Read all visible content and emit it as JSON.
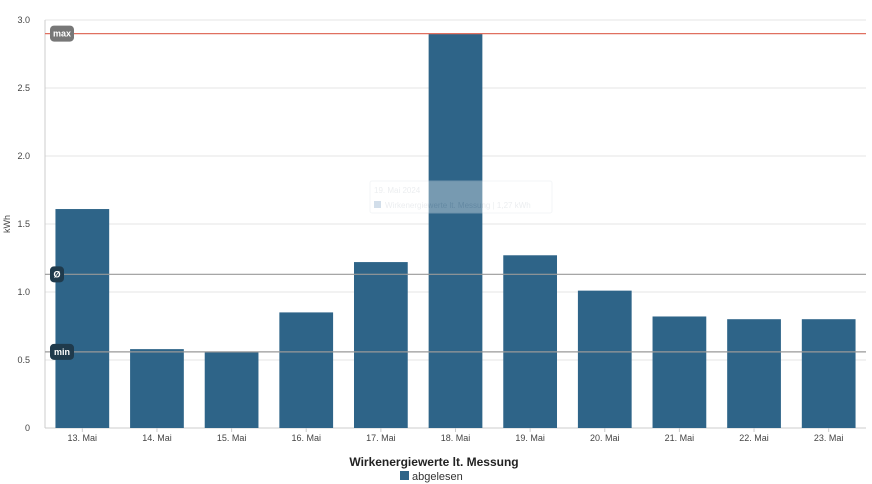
{
  "chart_data": {
    "type": "bar",
    "ylabel": "kWh",
    "ylim": [
      0,
      3.0
    ],
    "yticks": [
      "0",
      "0.5",
      "1.0",
      "1.5",
      "2.0",
      "2.5",
      "3.0"
    ],
    "categories": [
      "13. Mai",
      "14. Mai",
      "15. Mai",
      "16. Mai",
      "17. Mai",
      "18. Mai",
      "19. Mai",
      "20. Mai",
      "21. Mai",
      "22. Mai",
      "23. Mai"
    ],
    "series": [
      {
        "name": "abgelesen",
        "color": "#2e6488",
        "values": [
          1.61,
          0.58,
          0.56,
          0.85,
          1.22,
          2.9,
          1.27,
          1.01,
          0.82,
          0.8,
          0.8
        ]
      }
    ],
    "reference_lines": [
      {
        "label": "max",
        "value": 2.9,
        "line_color": "#e07060",
        "badge_color": "#777777"
      },
      {
        "label": "Ø",
        "value": 1.13,
        "line_color": "#999999",
        "badge_color": "#1f3a4c"
      },
      {
        "label": "min",
        "value": 0.56,
        "line_color": "#999999",
        "badge_color": "#1f3a4c"
      }
    ],
    "legend": {
      "title": "Wirkenergiewerte lt. Messung",
      "position": "bottom"
    },
    "tooltip": {
      "date": "19. Mai 2024",
      "text": "Wirkenergiewerte lt. Messung | 1,27 kWh"
    },
    "grid": true
  }
}
